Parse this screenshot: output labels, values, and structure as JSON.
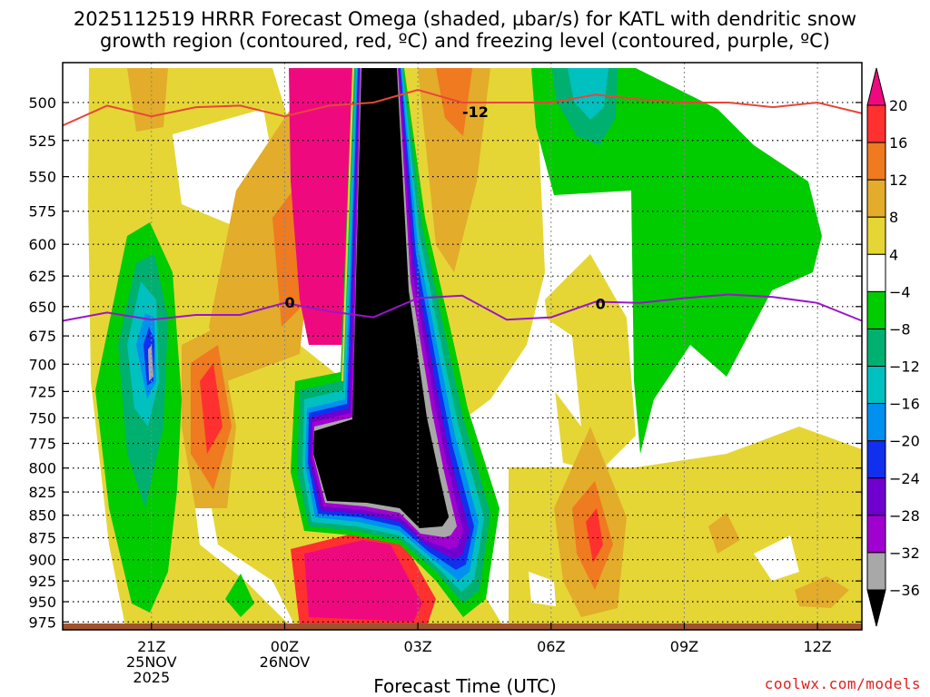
{
  "chart_data": {
    "type": "heatmap",
    "title_line1": "2025112519 HRRR Forecast Omega (shaded, µbar/s) for KATL with dendritic snow",
    "title_line2": "growth region (contoured, red, ºC) and freezing level (contoured, purple, ºC)",
    "xlabel": "Forecast Time (UTC)",
    "credit": "coolwx.com/models",
    "x_ticks": [
      {
        "hour": 21,
        "label": "21Z",
        "sub1": "25NOV",
        "sub2": "2025"
      },
      {
        "hour": 24,
        "label": "00Z",
        "sub1": "26NOV",
        "sub2": ""
      },
      {
        "hour": 27,
        "label": "03Z",
        "sub1": "",
        "sub2": ""
      },
      {
        "hour": 30,
        "label": "06Z",
        "sub1": "",
        "sub2": ""
      },
      {
        "hour": 33,
        "label": "09Z",
        "sub1": "",
        "sub2": ""
      },
      {
        "hour": 36,
        "label": "12Z",
        "sub1": "",
        "sub2": ""
      }
    ],
    "x_range_hours": [
      19,
      37
    ],
    "y_ticks": [
      500,
      525,
      550,
      575,
      600,
      625,
      650,
      675,
      700,
      725,
      750,
      775,
      800,
      825,
      850,
      875,
      900,
      925,
      950,
      975
    ],
    "y_range_mb": [
      475,
      985
    ],
    "y_scale": "log",
    "grid": true,
    "colorbar": {
      "labels": [
        "20",
        "16",
        "12",
        "8",
        "4",
        "−4",
        "−8",
        "−12",
        "−16",
        "−20",
        "−24",
        "−28",
        "−32",
        "−36"
      ],
      "colors": [
        "#ff3030",
        "#ef7a20",
        "#e3ac2a",
        "#e5d636",
        "#ffffff",
        "#00cc00",
        "#00b070",
        "#00c0c0",
        "#0090f0",
        "#1030ee",
        "#7000d0",
        "#a000d0",
        "#a8a8a8"
      ],
      "top_color": "#ee0a7e",
      "bottom_color": "#000000"
    },
    "contours": {
      "dgz_label": "-12",
      "freezing_label": "0",
      "dgz_color": "#e8463a",
      "freezing_color": "#9a16c8",
      "dgz_line": [
        [
          19,
          515
        ],
        [
          20,
          502
        ],
        [
          21,
          509
        ],
        [
          22,
          503
        ],
        [
          23,
          502
        ],
        [
          24,
          509
        ],
        [
          25,
          502
        ],
        [
          26,
          500
        ],
        [
          27,
          492
        ],
        [
          28,
          500
        ],
        [
          29,
          500
        ],
        [
          30,
          500
        ],
        [
          31,
          495
        ],
        [
          32,
          498
        ],
        [
          33,
          500
        ],
        [
          34,
          500
        ],
        [
          35,
          503
        ],
        [
          36,
          500
        ],
        [
          37,
          507
        ]
      ],
      "freezing_line": [
        [
          19,
          662
        ],
        [
          20,
          655
        ],
        [
          21,
          661
        ],
        [
          22,
          657
        ],
        [
          23,
          657
        ],
        [
          24,
          647
        ],
        [
          25,
          654
        ],
        [
          26,
          659
        ],
        [
          27,
          643
        ],
        [
          28,
          641
        ],
        [
          29,
          661
        ],
        [
          30,
          659
        ],
        [
          31,
          646
        ],
        [
          32,
          647
        ],
        [
          33,
          643
        ],
        [
          34,
          640
        ],
        [
          35,
          642
        ],
        [
          36,
          647
        ],
        [
          37,
          662
        ]
      ]
    },
    "ground_color": "#a0522d"
  }
}
